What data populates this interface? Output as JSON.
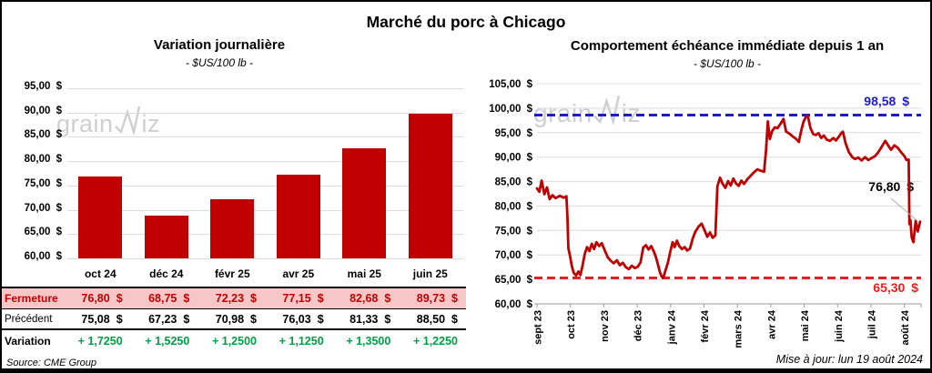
{
  "main_title": "Marché du porc à Chicago",
  "watermark": {
    "part1": "grain",
    "part2": "iz",
    "full": "grainwiz"
  },
  "footer": {
    "source": "Source: CME Group",
    "updated": "Mise à jour: lun 19 août 2024"
  },
  "chart_data": [
    {
      "type": "bar",
      "title": "Variation journalière",
      "subtitle": "- $US/100 lb -",
      "unit": "$US/100 lb",
      "categories": [
        "oct 24",
        "déc 24",
        "févr 25",
        "avr 25",
        "mai 25",
        "juin 25"
      ],
      "values": [
        76.8,
        68.75,
        72.23,
        77.15,
        82.68,
        89.73
      ],
      "ylim": [
        60,
        95
      ],
      "yticks": [
        60,
        65,
        70,
        75,
        80,
        85,
        90,
        95
      ],
      "ytick_labels": [
        "60,00 $",
        "65,00 $",
        "70,00 $",
        "75,00 $",
        "80,00 $",
        "85,00 $",
        "90,00 $",
        "95,00 $"
      ],
      "bar_color": "#C00000",
      "grid_color": "#DCDCDC",
      "table": {
        "rows": [
          {
            "label": "Fermeture",
            "values": [
              "76,80",
              "68,75",
              "72,23",
              "77,15",
              "82,68",
              "89,73"
            ],
            "suffix": "$",
            "text_color": "#C00000",
            "bg": "#F7C7C7",
            "bold_label": true
          },
          {
            "label": "Précédent",
            "values": [
              "75,08",
              "67,23",
              "70,98",
              "76,03",
              "81,33",
              "88,50"
            ],
            "suffix": "$",
            "text_color": "#000000",
            "bg": "#FFFFFF",
            "bold_label": false
          },
          {
            "label": "Variation",
            "values": [
              "+ 1,7250",
              "+ 1,5250",
              "+ 1,2500",
              "+ 1,1250",
              "+ 1,3500",
              "+ 1,2250"
            ],
            "suffix": "",
            "text_color": "#00A046",
            "bg": "#FFFFFF",
            "bold_label": true
          }
        ]
      }
    },
    {
      "type": "line",
      "title": "Comportement échéance immédiate depuis 1 an",
      "subtitle": "- $US/100 lb -",
      "unit": "$US/100 lb",
      "ylim": [
        60,
        105
      ],
      "yticks": [
        60,
        65,
        70,
        75,
        80,
        85,
        90,
        95,
        100,
        105
      ],
      "ytick_labels": [
        "60,00 $",
        "65,00 $",
        "70,00 $",
        "75,00 $",
        "80,00 $",
        "85,00 $",
        "90,00 $",
        "95,00 $",
        "100,00 $",
        "105,00 $"
      ],
      "x_tick_labels": [
        "sept 23",
        "oct 23",
        "nov 23",
        "déc 23",
        "janv 24",
        "févr 24",
        "mars 24",
        "avr 24",
        "mai 24",
        "juin 24",
        "juil 24",
        "août 24"
      ],
      "line_color": "#C00000",
      "grid_color": "#DCDCDC",
      "resistance": {
        "value": 98.58,
        "label": "98,58 $",
        "color": "#1C1CCE"
      },
      "support": {
        "value": 65.3,
        "label": "65,30 $",
        "color": "#E8201E"
      },
      "last_point": {
        "value": 76.8,
        "label": "76,80 $"
      },
      "series": [
        [
          0.0,
          83.6
        ],
        [
          0.07,
          82.9
        ],
        [
          0.14,
          85.2
        ],
        [
          0.22,
          82.4
        ],
        [
          0.3,
          83.8
        ],
        [
          0.38,
          81.4
        ],
        [
          0.46,
          82.2
        ],
        [
          0.56,
          81.6
        ],
        [
          0.68,
          82.1
        ],
        [
          0.8,
          81.7
        ],
        [
          0.88,
          82.0
        ],
        [
          0.91,
          78.0
        ],
        [
          0.94,
          71.3
        ],
        [
          0.99,
          69.8
        ],
        [
          1.04,
          67.8
        ],
        [
          1.1,
          66.3
        ],
        [
          1.17,
          65.8
        ],
        [
          1.24,
          66.6
        ],
        [
          1.3,
          65.9
        ],
        [
          1.36,
          67.7
        ],
        [
          1.43,
          70.2
        ],
        [
          1.5,
          71.6
        ],
        [
          1.57,
          70.8
        ],
        [
          1.64,
          72.3
        ],
        [
          1.71,
          71.2
        ],
        [
          1.78,
          72.6
        ],
        [
          1.86,
          71.8
        ],
        [
          1.94,
          72.4
        ],
        [
          2.03,
          70.9
        ],
        [
          2.12,
          69.5
        ],
        [
          2.21,
          68.8
        ],
        [
          2.3,
          68.3
        ],
        [
          2.39,
          68.9
        ],
        [
          2.48,
          67.9
        ],
        [
          2.57,
          68.4
        ],
        [
          2.66,
          67.5
        ],
        [
          2.75,
          67.1
        ],
        [
          2.84,
          67.8
        ],
        [
          2.93,
          67.3
        ],
        [
          3.02,
          67.6
        ],
        [
          3.1,
          68.5
        ],
        [
          3.18,
          71.5
        ],
        [
          3.26,
          72.0
        ],
        [
          3.34,
          71.1
        ],
        [
          3.42,
          71.8
        ],
        [
          3.5,
          70.7
        ],
        [
          3.56,
          69.6
        ],
        [
          3.62,
          68.1
        ],
        [
          3.68,
          66.5
        ],
        [
          3.73,
          65.6
        ],
        [
          3.78,
          65.3
        ],
        [
          3.85,
          66.9
        ],
        [
          3.92,
          68.4
        ],
        [
          3.99,
          70.6
        ],
        [
          4.06,
          72.6
        ],
        [
          4.12,
          71.6
        ],
        [
          4.19,
          72.9
        ],
        [
          4.26,
          71.8
        ],
        [
          4.34,
          71.2
        ],
        [
          4.42,
          71.6
        ],
        [
          4.5,
          70.9
        ],
        [
          4.58,
          71.3
        ],
        [
          4.66,
          73.3
        ],
        [
          4.74,
          74.7
        ],
        [
          4.84,
          75.8
        ],
        [
          4.93,
          76.4
        ],
        [
          5.02,
          75.0
        ],
        [
          5.1,
          73.7
        ],
        [
          5.18,
          74.6
        ],
        [
          5.26,
          73.5
        ],
        [
          5.34,
          74.0
        ],
        [
          5.4,
          84.0
        ],
        [
          5.48,
          85.8
        ],
        [
          5.56,
          84.5
        ],
        [
          5.64,
          83.7
        ],
        [
          5.72,
          85.1
        ],
        [
          5.8,
          84.2
        ],
        [
          5.88,
          85.6
        ],
        [
          5.96,
          84.6
        ],
        [
          6.04,
          84.1
        ],
        [
          6.12,
          85.2
        ],
        [
          6.2,
          84.5
        ],
        [
          6.3,
          85.5
        ],
        [
          6.4,
          86.2
        ],
        [
          6.5,
          86.9
        ],
        [
          6.6,
          87.5
        ],
        [
          6.7,
          87.2
        ],
        [
          6.8,
          87.0
        ],
        [
          6.86,
          91.5
        ],
        [
          6.91,
          97.3
        ],
        [
          6.97,
          93.7
        ],
        [
          7.04,
          95.3
        ],
        [
          7.12,
          96.1
        ],
        [
          7.2,
          95.9
        ],
        [
          7.3,
          96.9
        ],
        [
          7.38,
          97.8
        ],
        [
          7.46,
          95.2
        ],
        [
          7.56,
          94.8
        ],
        [
          7.66,
          94.2
        ],
        [
          7.76,
          93.7
        ],
        [
          7.84,
          93.1
        ],
        [
          7.91,
          95.4
        ],
        [
          7.98,
          97.2
        ],
        [
          8.05,
          98.2
        ],
        [
          8.11,
          98.4
        ],
        [
          8.19,
          95.9
        ],
        [
          8.27,
          94.7
        ],
        [
          8.35,
          94.5
        ],
        [
          8.43,
          94.9
        ],
        [
          8.51,
          93.9
        ],
        [
          8.59,
          94.4
        ],
        [
          8.67,
          93.6
        ],
        [
          8.77,
          93.3
        ],
        [
          8.87,
          93.9
        ],
        [
          8.95,
          93.4
        ],
        [
          9.03,
          94.1
        ],
        [
          9.11,
          94.9
        ],
        [
          9.16,
          95.2
        ],
        [
          9.24,
          92.8
        ],
        [
          9.34,
          91.0
        ],
        [
          9.44,
          90.0
        ],
        [
          9.52,
          89.6
        ],
        [
          9.62,
          89.9
        ],
        [
          9.72,
          89.3
        ],
        [
          9.82,
          90.0
        ],
        [
          9.92,
          89.4
        ],
        [
          10.02,
          89.8
        ],
        [
          10.12,
          90.2
        ],
        [
          10.22,
          91.0
        ],
        [
          10.32,
          92.1
        ],
        [
          10.43,
          93.3
        ],
        [
          10.53,
          92.2
        ],
        [
          10.6,
          91.5
        ],
        [
          10.7,
          92.4
        ],
        [
          10.8,
          91.9
        ],
        [
          10.9,
          91.0
        ],
        [
          11.0,
          90.2
        ],
        [
          11.06,
          89.4
        ],
        [
          11.13,
          89.5
        ],
        [
          11.15,
          76.3
        ],
        [
          11.18,
          77.1
        ],
        [
          11.22,
          73.6
        ],
        [
          11.27,
          72.6
        ],
        [
          11.34,
          77.0
        ],
        [
          11.4,
          74.8
        ],
        [
          11.47,
          76.8
        ]
      ]
    }
  ]
}
